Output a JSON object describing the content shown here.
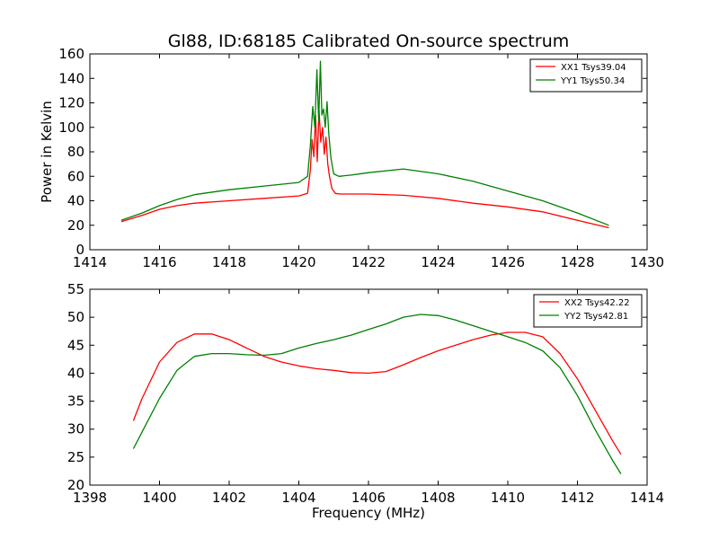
{
  "chart_data": [
    {
      "type": "line",
      "title": "Gl88, ID:68185 Calibrated On-source spectrum",
      "xlabel": "",
      "ylabel": "Power in Kelvin",
      "xlim": [
        1414,
        1430
      ],
      "ylim": [
        0,
        160
      ],
      "xticks": [
        "1414",
        "1416",
        "1418",
        "1420",
        "1422",
        "1424",
        "1426",
        "1428",
        "1430"
      ],
      "yticks": [
        "0",
        "20",
        "40",
        "60",
        "80",
        "100",
        "120",
        "140",
        "160"
      ],
      "legend": "top-right",
      "series": [
        {
          "name": "XX1 Tsys39.04",
          "color": "#ff0000",
          "x": [
            1414.9,
            1415.5,
            1416,
            1416.5,
            1417,
            1418,
            1419,
            1420,
            1420.25,
            1420.33,
            1420.38,
            1420.43,
            1420.48,
            1420.53,
            1420.58,
            1420.63,
            1420.68,
            1420.73,
            1420.78,
            1420.83,
            1420.88,
            1420.95,
            1421.05,
            1421.2,
            1421.5,
            1422,
            1423,
            1424,
            1425,
            1426,
            1427,
            1428,
            1428.9
          ],
          "y": [
            23,
            28,
            33,
            36,
            38,
            40,
            42,
            44,
            46,
            65,
            90,
            76,
            110,
            72,
            114,
            88,
            100,
            78,
            92,
            70,
            60,
            50,
            46,
            45.5,
            45.5,
            45.5,
            44.5,
            42,
            38,
            35,
            31,
            24,
            18
          ]
        },
        {
          "name": "YY1 Tsys50.34",
          "color": "#008000",
          "x": [
            1414.9,
            1415.5,
            1416,
            1416.5,
            1417,
            1418,
            1419,
            1420,
            1420.25,
            1420.33,
            1420.4,
            1420.46,
            1420.52,
            1420.57,
            1420.62,
            1420.66,
            1420.71,
            1420.76,
            1420.81,
            1420.86,
            1420.92,
            1421.0,
            1421.15,
            1421.5,
            1422,
            1423,
            1424,
            1425,
            1426,
            1427,
            1428,
            1428.9
          ],
          "y": [
            24,
            30,
            36,
            41,
            45,
            49,
            52,
            55,
            60,
            85,
            117,
            100,
            147,
            105,
            154,
            110,
            115,
            100,
            121,
            95,
            75,
            62,
            60,
            61,
            63,
            66,
            62,
            56,
            48,
            40,
            30,
            20
          ]
        }
      ]
    },
    {
      "type": "line",
      "title": "",
      "xlabel": "Frequency (MHz)",
      "ylabel": "",
      "xlim": [
        1398,
        1414
      ],
      "ylim": [
        20,
        55
      ],
      "xticks": [
        "1398",
        "1400",
        "1402",
        "1404",
        "1406",
        "1408",
        "1410",
        "1412",
        "1414"
      ],
      "yticks": [
        "20",
        "25",
        "30",
        "35",
        "40",
        "45",
        "50",
        "55"
      ],
      "legend": "top-right",
      "series": [
        {
          "name": "XX2 Tsys42.22",
          "color": "#ff0000",
          "x": [
            1399.25,
            1399.5,
            1400,
            1400.5,
            1401,
            1401.5,
            1402,
            1402.5,
            1403,
            1403.5,
            1404,
            1404.5,
            1405,
            1405.5,
            1406,
            1406.5,
            1407,
            1407.5,
            1408,
            1408.5,
            1409,
            1409.5,
            1410,
            1410.5,
            1411,
            1411.5,
            1412,
            1412.5,
            1413,
            1413.25
          ],
          "y": [
            31.5,
            35.5,
            42,
            45.5,
            47,
            47,
            46,
            44.5,
            43,
            42,
            41.3,
            40.8,
            40.5,
            40.1,
            40,
            40.3,
            41.5,
            42.8,
            44,
            45,
            46,
            46.8,
            47.3,
            47.3,
            46.5,
            43.5,
            39,
            33.5,
            28,
            25.5
          ]
        },
        {
          "name": "YY2 Tsys42.81",
          "color": "#008000",
          "x": [
            1399.25,
            1399.5,
            1400,
            1400.5,
            1401,
            1401.5,
            1402,
            1402.5,
            1403,
            1403.5,
            1404,
            1404.5,
            1405,
            1405.5,
            1406,
            1406.5,
            1407,
            1407.5,
            1408,
            1408.5,
            1409,
            1409.5,
            1410,
            1410.5,
            1411,
            1411.5,
            1412,
            1412.5,
            1413,
            1413.25
          ],
          "y": [
            26.5,
            29.5,
            35.5,
            40.5,
            43,
            43.5,
            43.5,
            43.3,
            43.2,
            43.5,
            44.5,
            45.3,
            46,
            46.8,
            47.8,
            48.8,
            50,
            50.5,
            50.3,
            49.5,
            48.5,
            47.5,
            46.5,
            45.5,
            44,
            41,
            36,
            30,
            24.5,
            22
          ]
        }
      ]
    }
  ]
}
